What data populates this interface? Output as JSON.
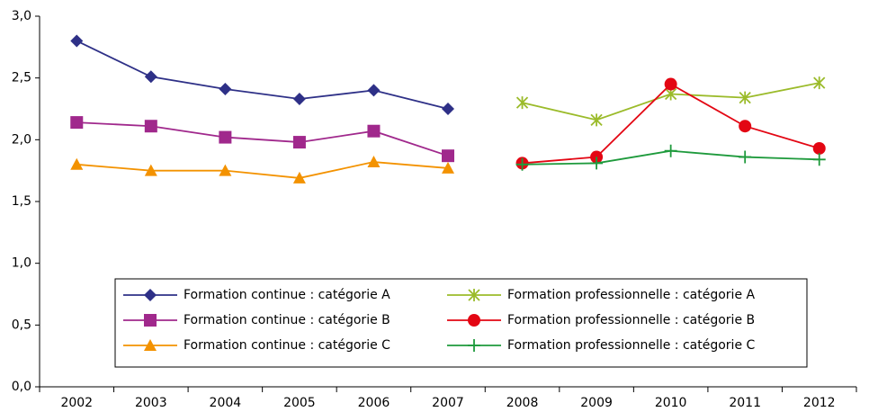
{
  "chart_data": {
    "type": "line",
    "categories": [
      "2002",
      "2003",
      "2004",
      "2005",
      "2006",
      "2007",
      "2008",
      "2009",
      "2010",
      "2011",
      "2012"
    ],
    "series": [
      {
        "name": "Formation continue : catégorie A",
        "color": "#2e3087",
        "marker": "diamond",
        "values": [
          2.8,
          2.51,
          2.41,
          2.33,
          2.4,
          2.25,
          null,
          null,
          null,
          null,
          null
        ]
      },
      {
        "name": "Formation continue : catégorie B",
        "color": "#a0288c",
        "marker": "square",
        "values": [
          2.14,
          2.11,
          2.02,
          1.98,
          2.07,
          1.87,
          null,
          null,
          null,
          null,
          null
        ]
      },
      {
        "name": "Formation continue : catégorie C",
        "color": "#f39200",
        "marker": "triangle",
        "values": [
          1.8,
          1.75,
          1.75,
          1.69,
          1.82,
          1.77,
          null,
          null,
          null,
          null,
          null
        ]
      },
      {
        "name": "Formation professionnelle : catégorie A",
        "color": "#9bbb2a",
        "marker": "asterisk",
        "values": [
          null,
          null,
          null,
          null,
          null,
          null,
          2.3,
          2.16,
          2.37,
          2.34,
          2.46
        ]
      },
      {
        "name": "Formation professionnelle : catégorie B",
        "color": "#e30613",
        "marker": "circle",
        "values": [
          null,
          null,
          null,
          null,
          null,
          null,
          1.81,
          1.86,
          2.45,
          2.11,
          1.93
        ]
      },
      {
        "name": "Formation professionnelle : catégorie C",
        "color": "#1e9a3c",
        "marker": "plus",
        "values": [
          null,
          null,
          null,
          null,
          null,
          null,
          1.8,
          1.81,
          1.91,
          1.86,
          1.84
        ]
      }
    ],
    "ylim": [
      0,
      3
    ],
    "yticks": [
      {
        "value": 0,
        "label": "0,0"
      },
      {
        "value": 0.5,
        "label": "0,5"
      },
      {
        "value": 1,
        "label": "1,0"
      },
      {
        "value": 1.5,
        "label": "1,5"
      },
      {
        "value": 2,
        "label": "2,0"
      },
      {
        "value": 2.5,
        "label": "2,5"
      },
      {
        "value": 3,
        "label": "3,0"
      }
    ],
    "grid": false,
    "legend": "lower center"
  }
}
